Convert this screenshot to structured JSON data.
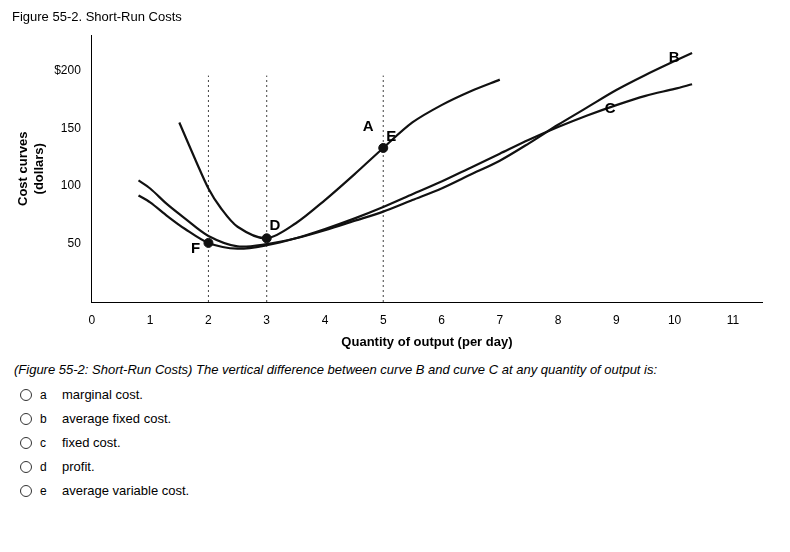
{
  "chart_data": {
    "type": "line",
    "title": "Figure 55-2. Short-Run Costs",
    "xlabel": "Quantity of output (per day)",
    "ylabel": [
      "Cost curves",
      "(dollars)"
    ],
    "xlim": [
      0,
      11.5
    ],
    "xticks": [
      0,
      1,
      2,
      3,
      4,
      5,
      6,
      7,
      8,
      9,
      10,
      11
    ],
    "ylim": [
      0,
      230
    ],
    "yticks": [
      50,
      100,
      150,
      {
        "value": 200,
        "label": "$200"
      }
    ],
    "grid": false,
    "color": "#111111",
    "series": [
      {
        "x": [
          0.8,
          1.0,
          1.3,
          1.6,
          2.0,
          2.5,
          3.0,
          3.5,
          4.0,
          4.5,
          5.0,
          5.5,
          6.0,
          6.5,
          7.0,
          7.5,
          8.0,
          8.5,
          9.0,
          9.5,
          10.0,
          10.3
        ],
        "values": [
          105,
          98,
          84,
          72,
          57,
          48,
          50,
          55,
          62,
          70,
          78,
          88,
          98,
          110,
          122,
          137,
          153,
          168,
          183,
          196,
          208,
          215
        ]
      },
      {
        "x": [
          0.8,
          1.0,
          1.3,
          1.6,
          2.0,
          2.5,
          3.0,
          3.5,
          4.0,
          4.5,
          5.0,
          5.5,
          6.0,
          6.5,
          7.0,
          7.5,
          8.0,
          8.5,
          9.0,
          9.5,
          10.0,
          10.3
        ],
        "values": [
          92,
          86,
          74,
          63,
          51,
          46,
          49,
          55,
          63,
          72,
          82,
          93,
          104,
          116,
          128,
          140,
          151,
          161,
          170,
          178,
          184,
          188
        ]
      },
      {
        "x": [
          1.5,
          1.8,
          2.0,
          2.2,
          2.5,
          3.0,
          3.5,
          4.0,
          4.5,
          5.0,
          5.5,
          6.0,
          6.5,
          7.0
        ],
        "values": [
          155,
          120,
          98,
          82,
          65,
          55,
          68,
          88,
          110,
          133,
          155,
          170,
          182,
          192
        ]
      },
      {
        "type": "scatter",
        "marker": "circle",
        "x": [
          2.0,
          3.0,
          5.0
        ],
        "values": [
          51,
          55,
          133
        ]
      }
    ],
    "vlines": {
      "x": [
        2.0,
        3.0,
        5.0
      ],
      "line_style": "dotted"
    },
    "annotations": [
      {
        "text": "A",
        "x": 4.65,
        "y": 148
      },
      {
        "text": "B",
        "x": 9.9,
        "y": 207
      },
      {
        "text": "C",
        "x": 8.8,
        "y": 163
      },
      {
        "text": "D",
        "x": 3.05,
        "y": 62
      },
      {
        "text": "E",
        "x": 5.05,
        "y": 139
      },
      {
        "text": "F",
        "x": 1.7,
        "y": 42
      }
    ],
    "question": "(Figure 55-2: Short-Run Costs) The vertical difference between curve B and curve C at any quantity of output is:",
    "options": [
      {
        "letter": "a",
        "text": "marginal cost."
      },
      {
        "letter": "b",
        "text": "average fixed cost."
      },
      {
        "letter": "c",
        "text": "fixed cost."
      },
      {
        "letter": "d",
        "text": "profit."
      },
      {
        "letter": "e",
        "text": "average variable cost."
      }
    ]
  }
}
